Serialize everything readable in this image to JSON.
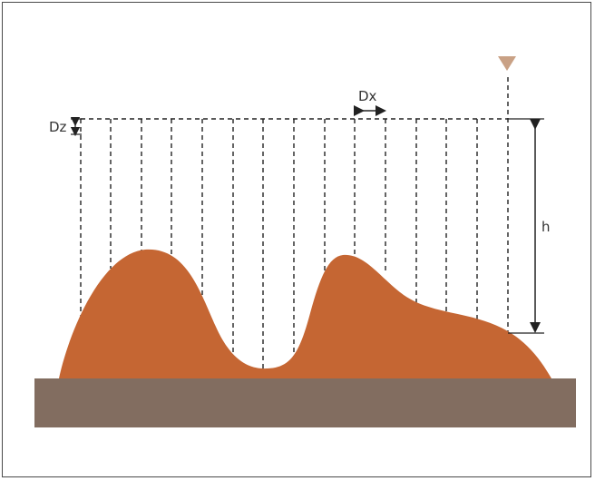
{
  "labels": {
    "dz": "Dz",
    "dx": "Dx",
    "h": "h"
  },
  "colors": {
    "terrain": "#C56633",
    "base": "#826D60",
    "marker": "#C9A185",
    "line": "#222222",
    "frame": "#4a4a4a"
  },
  "icons": {
    "marker": "inverted-triangle-marker-icon"
  }
}
